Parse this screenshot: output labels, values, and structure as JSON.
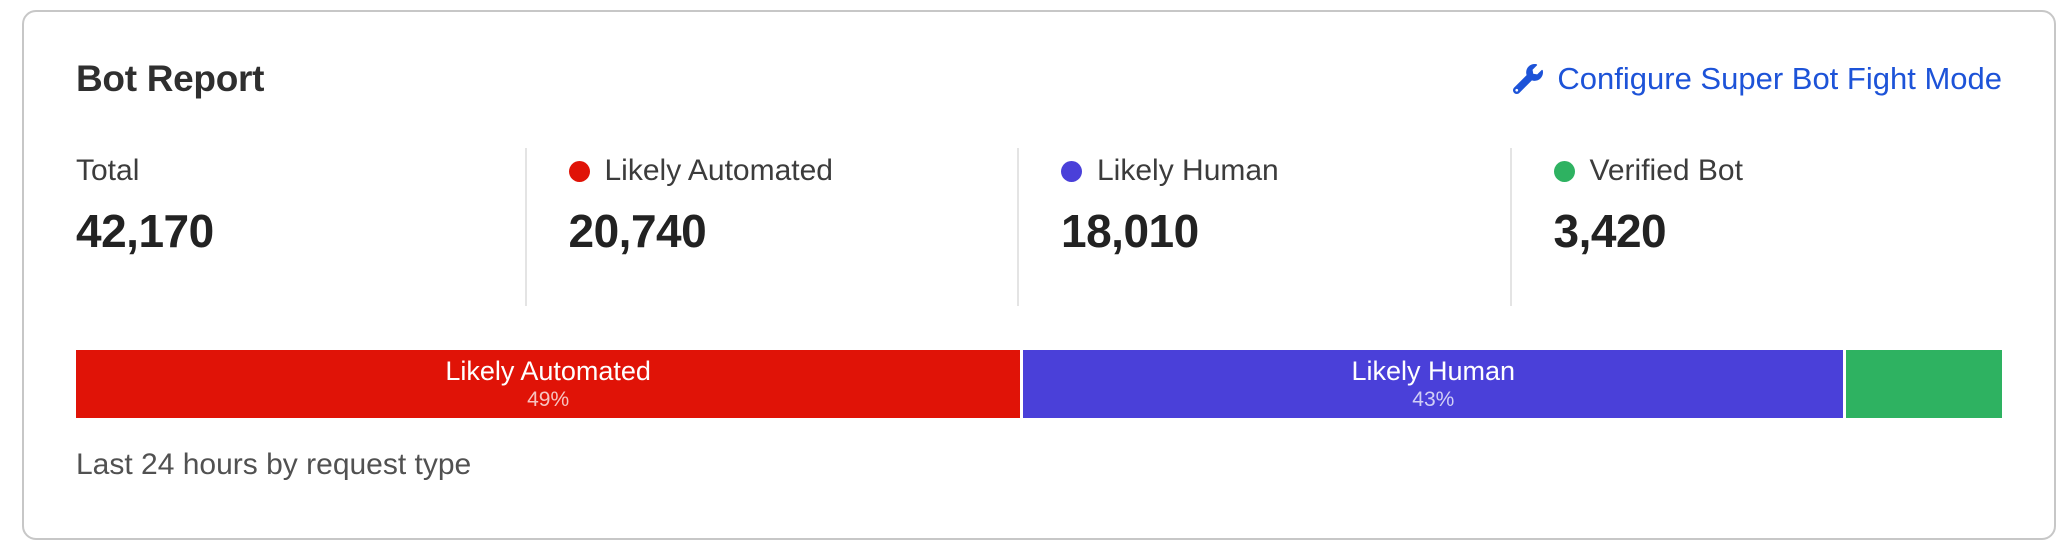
{
  "card": {
    "title": "Bot Report",
    "action": {
      "label": "Configure Super Bot Fight Mode",
      "icon": "wrench",
      "color": "#1d53d8"
    }
  },
  "stats": [
    {
      "label": "Total",
      "value": "42,170",
      "dot_color": null
    },
    {
      "label": "Likely Automated",
      "value": "20,740",
      "dot_color": "#e01307"
    },
    {
      "label": "Likely Human",
      "value": "18,010",
      "dot_color": "#4a40d9"
    },
    {
      "label": "Verified Bot",
      "value": "3,420",
      "dot_color": "#2eb261"
    }
  ],
  "bar": {
    "segments": [
      {
        "label": "Likely Automated",
        "percent_label": "49%",
        "percent": 49.18,
        "color": "#e01307"
      },
      {
        "label": "Likely Human",
        "percent_label": "43%",
        "percent": 42.71,
        "color": "#4a40d9"
      },
      {
        "label": "",
        "percent_label": "",
        "percent": 8.11,
        "color": "#2eb261"
      }
    ]
  },
  "caption": "Last 24 hours by request type",
  "chart_data": {
    "type": "bar",
    "variant": "horizontal-stacked",
    "title": "Bot Report",
    "categories": [
      "Likely Automated",
      "Likely Human",
      "Verified Bot"
    ],
    "values": [
      20740,
      18010,
      3420
    ],
    "total": 42170,
    "percents": [
      49,
      43,
      8
    ],
    "percent_labels": [
      "49%",
      "43%",
      null
    ],
    "colors": [
      "#e01307",
      "#4a40d9",
      "#2eb261"
    ],
    "caption": "Last 24 hours by request type",
    "legend_position": "top-stats-row",
    "axes": "none"
  },
  "colors": {
    "card_border": "#c7c7c7",
    "divider": "#e4e4e4",
    "title_text": "#2f2f2f",
    "stat_value_text": "#222222",
    "caption_text": "#515151",
    "link_blue": "#1d53d8"
  }
}
